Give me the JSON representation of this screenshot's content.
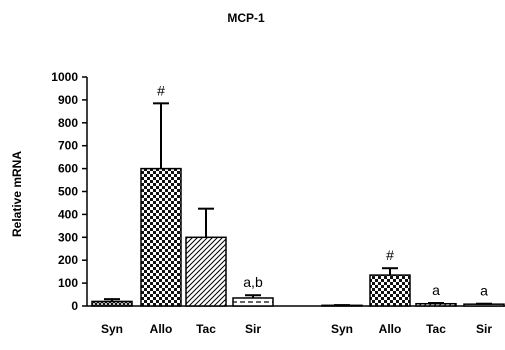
{
  "chart_data": {
    "type": "bar",
    "title": "MCP-1",
    "ylabel": "Relative mRNA",
    "xlabel": "",
    "ylim": [
      0,
      1000
    ],
    "yticks": [
      0,
      100,
      200,
      300,
      400,
      500,
      600,
      700,
      800,
      900,
      1000
    ],
    "grid": false,
    "groups": [
      {
        "categories": [
          "Syn",
          "Allo",
          "Tac",
          "Sir"
        ],
        "values": [
          20,
          600,
          300,
          35
        ],
        "errors": [
          10,
          285,
          125,
          12
        ],
        "annotations": [
          "",
          "#",
          "",
          "a,b"
        ]
      },
      {
        "categories": [
          "Syn",
          "Allo",
          "Tac",
          "Sir"
        ],
        "values": [
          3,
          135,
          10,
          8
        ],
        "errors": [
          1,
          30,
          3,
          2
        ],
        "annotations": [
          "",
          "#",
          "a",
          "a"
        ]
      }
    ],
    "patterns": [
      "crosshatch-dense",
      "checker",
      "diagonal",
      "dashed-horizontal"
    ]
  }
}
